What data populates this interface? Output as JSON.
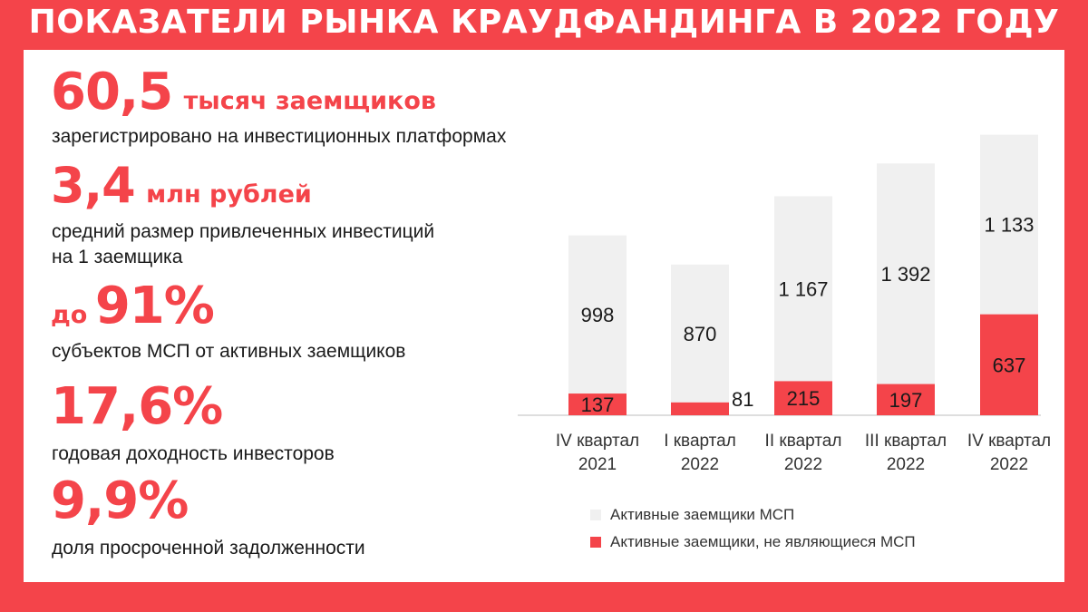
{
  "title": "ПОКАЗАТЕЛИ РЫНКА КРАУДФАНДИНГА В 2022 ГОДУ",
  "stats": [
    {
      "value": "60,5",
      "unit": "тысяч заемщиков",
      "description": "зарегистрировано на инвестиционных платформах"
    },
    {
      "value": "3,4",
      "unit": "млн рублей",
      "description_lines": [
        "средний размер привлеченных инвестиций",
        "на 1 заемщика"
      ]
    },
    {
      "prefix": "до",
      "value": "91%",
      "description": "субъектов МСП от активных заемщиков"
    },
    {
      "value": "17,6%",
      "description": "годовая доходность инвесторов"
    },
    {
      "value": "9,9%",
      "description": "доля просроченной задолженности"
    }
  ],
  "colors": {
    "accent": "#f4444a",
    "msp_bar": "#f0f0f0",
    "text": "#1a1a1a"
  },
  "chart_data": {
    "type": "bar",
    "stacked": true,
    "categories": [
      [
        "IV квартал",
        "2021"
      ],
      [
        "I квартал",
        "2022"
      ],
      [
        "II квартал",
        "2022"
      ],
      [
        "III квартал",
        "2022"
      ],
      [
        "IV квартал",
        "2022"
      ]
    ],
    "series": [
      {
        "name": "Активные заемщики, не являющиеся МСП",
        "color": "#f4444a",
        "values": [
          137,
          81,
          215,
          197,
          637
        ],
        "labels": [
          "137",
          "81",
          "215",
          "197",
          "637"
        ]
      },
      {
        "name": "Активные заемщики МСП",
        "color": "#f0f0f0",
        "values": [
          998,
          870,
          1167,
          1392,
          1133
        ],
        "labels": [
          "998",
          "870",
          "1 167",
          "1 392",
          "1 133"
        ]
      }
    ],
    "legend": [
      "Активные заемщики МСП",
      "Активные заемщики, не являющиеся МСП"
    ],
    "legend_position": "bottom",
    "grid": false
  }
}
